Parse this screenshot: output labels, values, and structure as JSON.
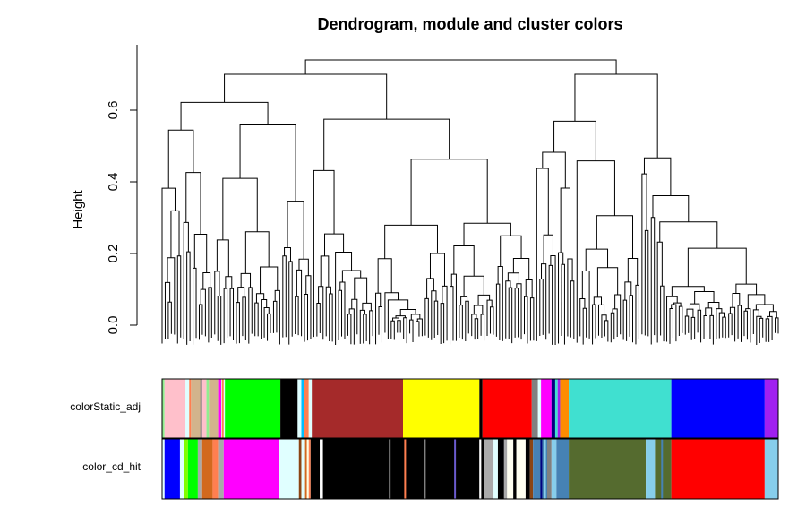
{
  "chart_data": {
    "type": "dendrogram",
    "title": "Dendrogram, module and cluster colors",
    "ylabel": "Height",
    "xlabel": "",
    "ylim": [
      0,
      0.75
    ],
    "yticks": [
      0.0,
      0.2,
      0.4,
      0.6
    ],
    "ytick_labels": [
      "0.0",
      "0.2",
      "0.4",
      "0.6"
    ],
    "n_leaves": 200,
    "root_height": 0.74,
    "main_clusters": [
      {
        "name": "left",
        "leaf_range": [
          0,
          120
        ],
        "merge_height": 0.74
      },
      {
        "name": "right",
        "leaf_range": [
          121,
          199
        ],
        "merge_height": 0.72
      }
    ],
    "color_rows": [
      {
        "label": "colorStatic_adj",
        "segments": [
          {
            "color": "#90EE90",
            "start": 0.0,
            "end": 0.004
          },
          {
            "color": "#FFC0CB",
            "start": 0.004,
            "end": 0.038
          },
          {
            "color": "#E0FFFF",
            "start": 0.038,
            "end": 0.044
          },
          {
            "color": "#FF7F50",
            "start": 0.044,
            "end": 0.047
          },
          {
            "color": "#D2B48C",
            "start": 0.047,
            "end": 0.063
          },
          {
            "color": "#FFC0CB",
            "start": 0.063,
            "end": 0.072
          },
          {
            "color": "#90EE90",
            "start": 0.072,
            "end": 0.076
          },
          {
            "color": "#D2B48C",
            "start": 0.076,
            "end": 0.091
          },
          {
            "color": "#FF00FF",
            "start": 0.091,
            "end": 0.096
          },
          {
            "color": "#E0FFFF",
            "start": 0.096,
            "end": 0.102
          },
          {
            "color": "#00FF00",
            "start": 0.102,
            "end": 0.192
          },
          {
            "color": "#000000",
            "start": 0.192,
            "end": 0.22
          },
          {
            "color": "#E0FFFF",
            "start": 0.22,
            "end": 0.226
          },
          {
            "color": "#00BFFF",
            "start": 0.226,
            "end": 0.231
          },
          {
            "color": "#FF7F50",
            "start": 0.231,
            "end": 0.238
          },
          {
            "color": "#E0FFFF",
            "start": 0.238,
            "end": 0.243
          },
          {
            "color": "#A52A2A",
            "start": 0.243,
            "end": 0.391
          },
          {
            "color": "#FFFF00",
            "start": 0.391,
            "end": 0.515
          },
          {
            "color": "#000000",
            "start": 0.515,
            "end": 0.52
          },
          {
            "color": "#FF0000",
            "start": 0.52,
            "end": 0.6
          },
          {
            "color": "#808080",
            "start": 0.6,
            "end": 0.61
          },
          {
            "color": "#E0FFFF",
            "start": 0.61,
            "end": 0.615
          },
          {
            "color": "#FF00FF",
            "start": 0.615,
            "end": 0.632
          },
          {
            "color": "#000080",
            "start": 0.632,
            "end": 0.638
          },
          {
            "color": "#40E0D0",
            "start": 0.638,
            "end": 0.642
          },
          {
            "color": "#A020F0",
            "start": 0.642,
            "end": 0.646
          },
          {
            "color": "#FF8C00",
            "start": 0.646,
            "end": 0.66
          },
          {
            "color": "#40E0D0",
            "start": 0.66,
            "end": 0.8265
          },
          {
            "color": "#0000FF",
            "start": 0.8265,
            "end": 0.978
          },
          {
            "color": "#A020F0",
            "start": 0.978,
            "end": 1.0
          }
        ]
      },
      {
        "label": "color_cd_hit",
        "segments": [
          {
            "color": "#E0FFFF",
            "start": 0.0,
            "end": 0.004
          },
          {
            "color": "#0000FF",
            "start": 0.004,
            "end": 0.029
          },
          {
            "color": "#E0FFFF",
            "start": 0.029,
            "end": 0.036
          },
          {
            "color": "#7FFF00",
            "start": 0.036,
            "end": 0.042
          },
          {
            "color": "#00FF00",
            "start": 0.042,
            "end": 0.058
          },
          {
            "color": "#A9A9A9",
            "start": 0.058,
            "end": 0.065
          },
          {
            "color": "#D2691E",
            "start": 0.065,
            "end": 0.082
          },
          {
            "color": "#FF7F50",
            "start": 0.082,
            "end": 0.091
          },
          {
            "color": "#A9A9A9",
            "start": 0.091,
            "end": 0.1
          },
          {
            "color": "#FF00FF",
            "start": 0.1,
            "end": 0.19
          },
          {
            "color": "#E0FFFF",
            "start": 0.19,
            "end": 0.222
          },
          {
            "color": "#8B4513",
            "start": 0.222,
            "end": 0.226
          },
          {
            "color": "#E0FFFF",
            "start": 0.226,
            "end": 0.232
          },
          {
            "color": "#D2691E",
            "start": 0.232,
            "end": 0.235
          },
          {
            "color": "#FFFFE0",
            "start": 0.235,
            "end": 0.238
          },
          {
            "color": "#FF7F50",
            "start": 0.238,
            "end": 0.241
          },
          {
            "color": "#000000",
            "start": 0.241,
            "end": 0.256
          },
          {
            "color": "#FFFFFF",
            "start": 0.256,
            "end": 0.261
          },
          {
            "color": "#000000",
            "start": 0.261,
            "end": 0.515
          },
          {
            "color": "#FFFFFF",
            "start": 0.515,
            "end": 0.518
          },
          {
            "color": "#000000",
            "start": 0.518,
            "end": 0.523
          },
          {
            "color": "#A9A9A9",
            "start": 0.523,
            "end": 0.538
          },
          {
            "color": "#E0FFFF",
            "start": 0.538,
            "end": 0.545
          },
          {
            "color": "#000000",
            "start": 0.545,
            "end": 0.555
          },
          {
            "color": "#A9A9A9",
            "start": 0.555,
            "end": 0.56
          },
          {
            "color": "#FFFFF0",
            "start": 0.56,
            "end": 0.57
          },
          {
            "color": "#000000",
            "start": 0.57,
            "end": 0.575
          },
          {
            "color": "#FFFFF0",
            "start": 0.575,
            "end": 0.59
          },
          {
            "color": "#000000",
            "start": 0.59,
            "end": 0.597
          },
          {
            "color": "#8B4513",
            "start": 0.597,
            "end": 0.602
          },
          {
            "color": "#4682B4",
            "start": 0.602,
            "end": 0.625
          },
          {
            "color": "#808080",
            "start": 0.625,
            "end": 0.632
          },
          {
            "color": "#87CEEB",
            "start": 0.632,
            "end": 0.64
          },
          {
            "color": "#4682B4",
            "start": 0.64,
            "end": 0.66
          },
          {
            "color": "#556B2F",
            "start": 0.66,
            "end": 0.785
          },
          {
            "color": "#87CEEB",
            "start": 0.785,
            "end": 0.8
          },
          {
            "color": "#556B2F",
            "start": 0.8,
            "end": 0.8265
          },
          {
            "color": "#FF0000",
            "start": 0.8265,
            "end": 0.978
          },
          {
            "color": "#87CEEB",
            "start": 0.978,
            "end": 1.0
          }
        ]
      }
    ],
    "color_row_accents": [
      {
        "row": 0,
        "color": "#808080",
        "at": 0.062
      },
      {
        "row": 0,
        "color": "#FF7F50",
        "at": 0.097
      },
      {
        "row": 1,
        "color": "#808080",
        "at": 0.368
      },
      {
        "row": 1,
        "color": "#FF7F50",
        "at": 0.393
      },
      {
        "row": 1,
        "color": "#808080",
        "at": 0.425
      },
      {
        "row": 1,
        "color": "#6A5ACD",
        "at": 0.474
      },
      {
        "row": 1,
        "color": "#000080",
        "at": 0.614
      },
      {
        "row": 1,
        "color": "#87CEEB",
        "at": 0.62
      },
      {
        "row": 1,
        "color": "#4682B4",
        "at": 0.81
      }
    ]
  }
}
